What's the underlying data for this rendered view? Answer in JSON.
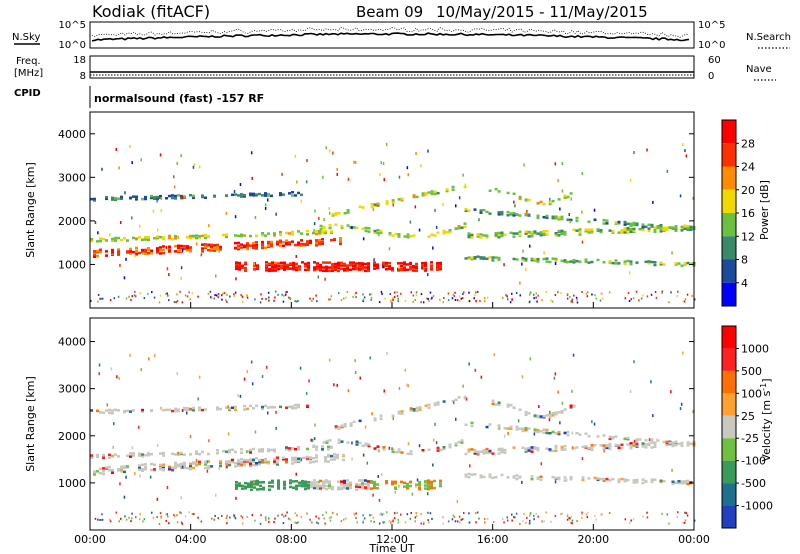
{
  "header": {
    "station": "Kodiak (fitACF)",
    "beam": "Beam 09",
    "date_range": "10/May/2015 - 11/May/2015"
  },
  "top_panels": {
    "nsky_label": "N.Sky",
    "nsearch_label": "N.Search",
    "nsky_ticks": [
      "10^5",
      "10^0"
    ],
    "nsearch_ticks": [
      "10^5",
      "10^0"
    ],
    "freq_label_1": "Freq.",
    "freq_label_2": "[MHz]",
    "freq_ticks": [
      "18",
      "8"
    ],
    "nave_label": "Nave",
    "nave_ticks": [
      "60",
      "0"
    ],
    "cpid_label": "CPID",
    "cpid_value": "normalsound (fast) -157 RF"
  },
  "chart_data": [
    {
      "type": "heatmap",
      "name": "power",
      "ylabel": "Slant Range [km]",
      "xlabel": "",
      "ylim": [
        0,
        4500
      ],
      "yticks": [
        "4000",
        "3000",
        "2000",
        "1000"
      ],
      "colorbar_label": "Power [dB]",
      "colorbar_ticks": [
        "28",
        "24",
        "20",
        "16",
        "12",
        "8",
        "4"
      ],
      "colors": [
        "#0000ff",
        "#1a4a9c",
        "#3a8a6a",
        "#6cc040",
        "#f0d800",
        "#ff8c00",
        "#ff3000",
        "#ff0000"
      ]
    },
    {
      "type": "heatmap",
      "name": "velocity",
      "ylabel": "Slant Range [km]",
      "xlabel": "Time UT",
      "ylim": [
        0,
        4500
      ],
      "yticks": [
        "4000",
        "3000",
        "2000",
        "1000"
      ],
      "xticks": [
        "00:00",
        "04:00",
        "08:00",
        "12:00",
        "16:00",
        "20:00",
        "00:00"
      ],
      "colorbar_label": "Velocity [m s",
      "colorbar_label_sup": "-1",
      "colorbar_label_end": "]",
      "colorbar_ticks": [
        "1000",
        "500",
        "100",
        "25",
        "-25",
        "-100",
        "-500",
        "-1000"
      ],
      "colors": [
        "#2040c0",
        "#1f6f8f",
        "#3a9a5a",
        "#70c040",
        "#c8c8c0",
        "#ffa030",
        "#ff7000",
        "#ff2020",
        "#ff0000"
      ]
    }
  ]
}
